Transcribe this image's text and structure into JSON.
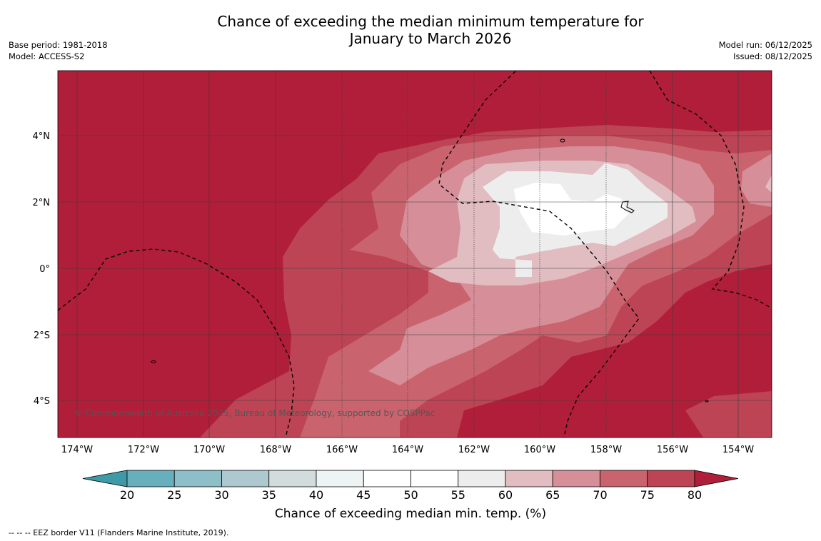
{
  "title_line1": "Chance of exceeding the median minimum temperature for",
  "title_line2": "January to March 2026",
  "base_period": "Base period: 1981-2018",
  "model": "Model: ACCESS-S2",
  "model_run": "Model run: 06/12/2025",
  "issued": "Issued: 08/12/2025",
  "copyright": "© Commonwealth of Australia 2025, Bureau of Meteorology, supported by COSPPac",
  "footnote": "--  --  -- EEZ border V11 (Flanders Marine Institute, 2019).",
  "lon_labels": [
    "174°W",
    "172°W",
    "170°W",
    "168°W",
    "166°W",
    "164°W",
    "162°W",
    "160°W",
    "158°W",
    "156°W",
    "154°W"
  ],
  "lat_labels": [
    "4°N",
    "2°N",
    "0°",
    "2°S",
    "4°S"
  ],
  "colorbar": {
    "title": "Chance of exceeding median min. temp. (%)",
    "ticks": [
      "20",
      "25",
      "30",
      "35",
      "40",
      "45",
      "50",
      "55",
      "60",
      "65",
      "70",
      "75",
      "80"
    ],
    "colors": [
      "#3f9aa8",
      "#68afbd",
      "#8dbfc9",
      "#adc9cf",
      "#d3dcdd",
      "#eef3f3",
      "#ffffff",
      "#ffffff",
      "#eeeded",
      "#e1bcc1",
      "#d68e98",
      "#c9646f",
      "#bd4454",
      "#b11e39"
    ]
  }
}
